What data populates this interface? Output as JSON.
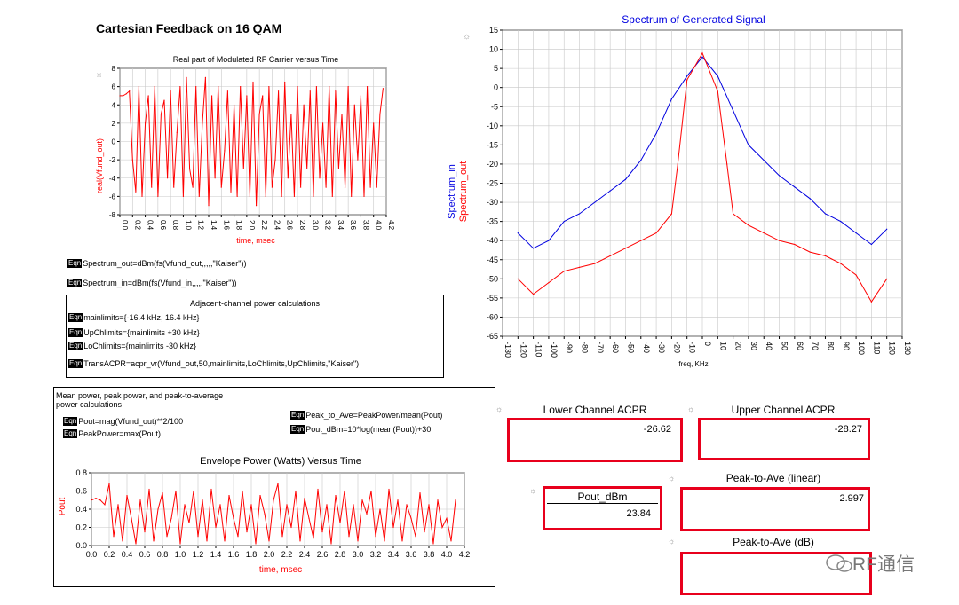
{
  "page_title": "Cartesian Feedback on 16 QAM",
  "colors": {
    "red": "#e8001c",
    "blue": "#0000e0",
    "trace_red": "#ff0000"
  },
  "equations": {
    "spectrum_out": "Spectrum_out=dBm(fs(Vfund_out,,,,,\"Kaiser\"))",
    "spectrum_in": "Spectrum_in=dBm(fs(Vfund_in,,,,,\"Kaiser\"))",
    "tag": "Eqn"
  },
  "acpr_panel": {
    "title": "Adjacent-channel power calculations",
    "lines": [
      "mainlimits={-16.4 kHz, 16.4 kHz}",
      "UpChlimits={mainlimits +30 kHz}",
      "LoChlimits={mainlimits -30 kHz}",
      "TransACPR=acpr_vr(Vfund_out,50,mainlimits,LoChlimits,UpChlimits,\"Kaiser\")"
    ]
  },
  "power_panel": {
    "title_line1": "Mean power, peak power, and peak-to-average",
    "title_line2": "power calculations",
    "eq_pout": "Pout=mag(Vfund_out)**2/100",
    "eq_peak": "PeakPower=max(Pout)",
    "eq_ratio": "Peak_to_Ave=PeakPower/mean(Pout)",
    "eq_dbm": "Pout_dBm=10*log(mean(Pout))+30"
  },
  "results": {
    "lower_acpr_label": "Lower Channel ACPR",
    "lower_acpr_value": "-26.62",
    "upper_acpr_label": "Upper Channel ACPR",
    "upper_acpr_value": "-28.27",
    "pout_label": "Pout_dBm",
    "pout_value": "23.84",
    "pta_lin_label": "Peak-to-Ave (linear)",
    "pta_lin_value": "2.997",
    "pta_db_label": "Peak-to-Ave (dB)"
  },
  "watermark": "RF通信",
  "chart_data": [
    {
      "type": "line",
      "title": "Real part of Modulated RF Carrier versus Time",
      "xlabel": "time, msec",
      "ylabel": "real(Vfund_out)",
      "xlim": [
        0,
        4.2
      ],
      "ylim": [
        -8,
        8
      ],
      "xticks": [
        "0.0",
        "0.2",
        "0.4",
        "0.6",
        "0.8",
        "1.0",
        "1.2",
        "1.4",
        "1.6",
        "1.8",
        "2.0",
        "2.2",
        "2.4",
        "2.6",
        "2.8",
        "3.0",
        "3.2",
        "3.4",
        "3.6",
        "3.8",
        "4.0",
        "4.2"
      ],
      "yticks": [
        "-8",
        "-6",
        "-4",
        "-2",
        "0",
        "2",
        "4",
        "6",
        "8"
      ],
      "series": [
        {
          "name": "real(Vfund_out)",
          "color": "#ff0000",
          "x": [
            0,
            0.05,
            0.1,
            0.15,
            0.2,
            0.25,
            0.3,
            0.35,
            0.4,
            0.45,
            0.5,
            0.55,
            0.6,
            0.65,
            0.7,
            0.75,
            0.8,
            0.85,
            0.9,
            0.95,
            1.0,
            1.05,
            1.1,
            1.15,
            1.2,
            1.25,
            1.3,
            1.35,
            1.4,
            1.45,
            1.5,
            1.55,
            1.6,
            1.65,
            1.7,
            1.75,
            1.8,
            1.85,
            1.9,
            1.95,
            2.0,
            2.05,
            2.1,
            2.15,
            2.2,
            2.25,
            2.3,
            2.35,
            2.4,
            2.45,
            2.5,
            2.55,
            2.6,
            2.65,
            2.7,
            2.75,
            2.8,
            2.85,
            2.9,
            2.95,
            3.0,
            3.05,
            3.1,
            3.15,
            3.2,
            3.25,
            3.3,
            3.35,
            3.4,
            3.45,
            3.5,
            3.55,
            3.6,
            3.65,
            3.7,
            3.75,
            3.8,
            3.85,
            3.9,
            3.95,
            4.0,
            4.05,
            4.1,
            4.15
          ],
          "values": [
            5,
            5,
            5.2,
            5.5,
            -2,
            -5.5,
            6,
            -6,
            2,
            5,
            -5,
            6,
            -6,
            3,
            4.5,
            -4,
            5.5,
            -5,
            1,
            6,
            -6,
            7,
            -3,
            -5,
            6,
            -6,
            2,
            7,
            -7,
            5,
            -4,
            6,
            -5,
            -1,
            5.5,
            -5.5,
            4,
            -6,
            6,
            -3,
            5,
            -6,
            6.5,
            -7,
            3,
            5,
            -6,
            6,
            -5,
            -2,
            5.5,
            -6,
            6.5,
            -4,
            3,
            -6,
            6,
            -5,
            4,
            -3,
            5.5,
            -6,
            6,
            -4,
            2,
            -5,
            6,
            -6,
            5.5,
            -3,
            3,
            -5,
            6,
            -6,
            4,
            -2,
            5,
            -6,
            6,
            -5,
            2,
            -5,
            3,
            5.8
          ]
        }
      ]
    },
    {
      "type": "line",
      "title": "Spectrum of Generated Signal",
      "xlabel": "freq, KHz",
      "ylabel_in": "Spectrum_in",
      "ylabel_out": "Spectrum_out",
      "xlim": [
        -130,
        130
      ],
      "ylim": [
        -65,
        15
      ],
      "xticks": [
        "-130",
        "-120",
        "-110",
        "-100",
        "-90",
        "-80",
        "-70",
        "-60",
        "-50",
        "-40",
        "-30",
        "-20",
        "-10",
        "0",
        "10",
        "20",
        "30",
        "40",
        "50",
        "60",
        "70",
        "80",
        "90",
        "100",
        "110",
        "120",
        "130"
      ],
      "yticks": [
        "-65",
        "-60",
        "-55",
        "-50",
        "-45",
        "-40",
        "-35",
        "-30",
        "-25",
        "-20",
        "-15",
        "-10",
        "-5",
        "0",
        "5",
        "10",
        "15"
      ],
      "series": [
        {
          "name": "Spectrum_in",
          "color": "#0000e0",
          "x": [
            -120,
            -110,
            -100,
            -90,
            -80,
            -70,
            -60,
            -50,
            -40,
            -30,
            -20,
            -10,
            0,
            10,
            20,
            30,
            40,
            50,
            60,
            70,
            80,
            90,
            100,
            110,
            120
          ],
          "values": [
            -38,
            -42,
            -40,
            -35,
            -33,
            -30,
            -27,
            -24,
            -19,
            -12,
            -3,
            3,
            8,
            3,
            -6,
            -15,
            -19,
            -23,
            -26,
            -29,
            -33,
            -35,
            -38,
            -41,
            -37
          ]
        },
        {
          "name": "Spectrum_out",
          "color": "#ff0000",
          "x": [
            -120,
            -110,
            -100,
            -90,
            -80,
            -70,
            -60,
            -50,
            -40,
            -30,
            -20,
            -16,
            -10,
            0,
            10,
            16,
            20,
            30,
            40,
            50,
            60,
            70,
            80,
            90,
            100,
            110,
            120
          ],
          "values": [
            -50,
            -54,
            -51,
            -48,
            -47,
            -46,
            -44,
            -42,
            -40,
            -38,
            -33,
            -20,
            2,
            9,
            -1,
            -20,
            -33,
            -36,
            -38,
            -40,
            -41,
            -43,
            -44,
            -46,
            -49,
            -56,
            -50
          ]
        }
      ]
    },
    {
      "type": "line",
      "title": "Envelope Power (Watts) Versus Time",
      "xlabel": "time, msec",
      "ylabel": "Pout",
      "xlim": [
        0,
        4.2
      ],
      "ylim": [
        0,
        0.8
      ],
      "xticks": [
        "0.0",
        "0.2",
        "0.4",
        "0.6",
        "0.8",
        "1.0",
        "1.2",
        "1.4",
        "1.6",
        "1.8",
        "2.0",
        "2.2",
        "2.4",
        "2.6",
        "2.8",
        "3.0",
        "3.2",
        "3.4",
        "3.6",
        "3.8",
        "4.0",
        "4.2"
      ],
      "yticks": [
        "0.0",
        "0.2",
        "0.4",
        "0.6",
        "0.8"
      ],
      "series": [
        {
          "name": "Pout",
          "color": "#ff0000",
          "x": [
            0,
            0.05,
            0.1,
            0.15,
            0.2,
            0.25,
            0.3,
            0.35,
            0.4,
            0.45,
            0.5,
            0.55,
            0.6,
            0.65,
            0.7,
            0.75,
            0.8,
            0.85,
            0.9,
            0.95,
            1.0,
            1.05,
            1.1,
            1.15,
            1.2,
            1.25,
            1.3,
            1.35,
            1.4,
            1.45,
            1.5,
            1.55,
            1.6,
            1.65,
            1.7,
            1.75,
            1.8,
            1.85,
            1.9,
            1.95,
            2.0,
            2.05,
            2.1,
            2.15,
            2.2,
            2.25,
            2.3,
            2.35,
            2.4,
            2.45,
            2.5,
            2.55,
            2.6,
            2.65,
            2.7,
            2.75,
            2.8,
            2.85,
            2.9,
            2.95,
            3.0,
            3.05,
            3.1,
            3.15,
            3.2,
            3.25,
            3.3,
            3.35,
            3.4,
            3.45,
            3.5,
            3.55,
            3.6,
            3.65,
            3.7,
            3.75,
            3.8,
            3.85,
            3.9,
            3.95,
            4.0,
            4.05,
            4.1
          ],
          "values": [
            0.5,
            0.52,
            0.5,
            0.45,
            0.68,
            0.1,
            0.45,
            0.05,
            0.55,
            0.3,
            0.02,
            0.5,
            0.15,
            0.62,
            0.05,
            0.4,
            0.58,
            0.1,
            0.3,
            0.6,
            0.02,
            0.45,
            0.25,
            0.6,
            0.1,
            0.5,
            0.05,
            0.62,
            0.2,
            0.45,
            0.05,
            0.55,
            0.3,
            0.1,
            0.6,
            0.15,
            0.45,
            0.02,
            0.55,
            0.35,
            0.05,
            0.5,
            0.68,
            0.1,
            0.45,
            0.2,
            0.6,
            0.05,
            0.52,
            0.3,
            0.08,
            0.62,
            0.15,
            0.45,
            0.02,
            0.55,
            0.25,
            0.6,
            0.1,
            0.45,
            0.05,
            0.5,
            0.35,
            0.6,
            0.1,
            0.4,
            0.05,
            0.62,
            0.2,
            0.5,
            0.05,
            0.45,
            0.3,
            0.1,
            0.58,
            0.15,
            0.45,
            0.02,
            0.5,
            0.2,
            0.3,
            0.05,
            0.5
          ]
        }
      ]
    }
  ]
}
